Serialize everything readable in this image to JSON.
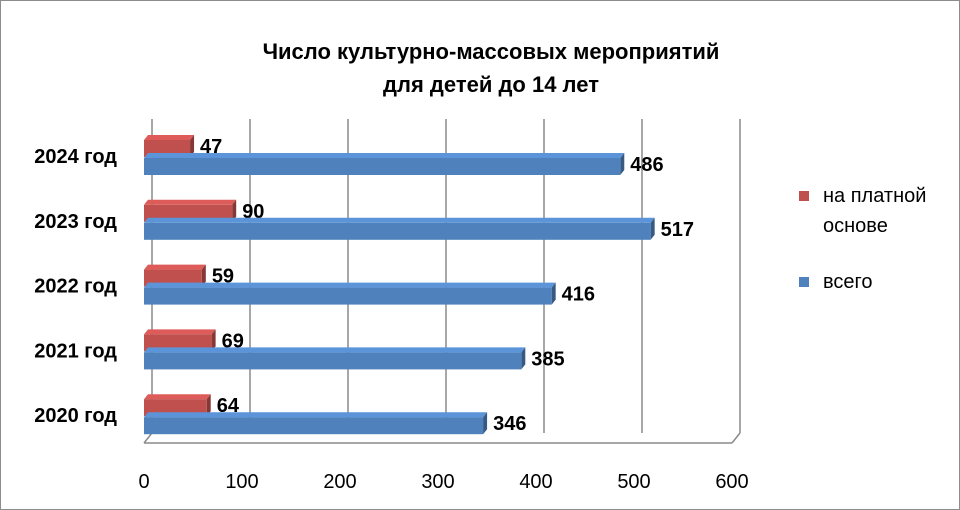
{
  "chart_data": {
    "type": "bar",
    "orientation": "horizontal",
    "title": "Число культурно-массовых мероприятий для детей до 14 лет",
    "title_lines": [
      "Число культурно-массовых мероприятий",
      "для детей до 14 лет"
    ],
    "categories": [
      "2020 год",
      "2021 год",
      "2022 год",
      "2023 год",
      "2024 год"
    ],
    "series": [
      {
        "name": "на платной основе",
        "legend_lines": [
          "на платной",
          "основе"
        ],
        "color": "#c0504d",
        "values": [
          64,
          69,
          59,
          90,
          47
        ]
      },
      {
        "name": "всего",
        "legend_lines": [
          "всего"
        ],
        "color": "#4f81bd",
        "values": [
          346,
          385,
          416,
          517,
          486
        ]
      }
    ],
    "xlim": [
      0,
      600
    ],
    "xticks": [
      0,
      100,
      200,
      300,
      400,
      500,
      600
    ],
    "grid": true,
    "style": "3d",
    "legend_position": "right"
  }
}
